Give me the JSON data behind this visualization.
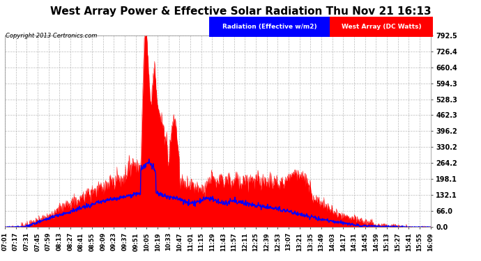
{
  "title": "West Array Power & Effective Solar Radiation Thu Nov 21 16:13",
  "copyright": "Copyright 2013 Certronics.com",
  "legend_blue": "Radiation (Effective w/m2)",
  "legend_red": "West Array (DC Watts)",
  "y_ticks": [
    0.0,
    66.0,
    132.1,
    198.1,
    264.2,
    330.2,
    396.2,
    462.3,
    528.3,
    594.3,
    660.4,
    726.4,
    792.5
  ],
  "y_max": 792.5,
  "y_min": 0.0,
  "plot_bg_color": "#ffffff",
  "grid_color": "#aaaaaa",
  "title_fontsize": 11,
  "copyright_fontsize": 6,
  "legend_fontsize": 6.5,
  "tick_fontsize": 7,
  "x_tick_fontsize": 6,
  "x_labels": [
    "07:01",
    "07:17",
    "07:31",
    "07:45",
    "07:59",
    "08:13",
    "08:27",
    "08:41",
    "08:55",
    "09:09",
    "09:23",
    "09:37",
    "09:51",
    "10:05",
    "10:19",
    "10:33",
    "10:47",
    "11:01",
    "11:15",
    "11:29",
    "11:43",
    "11:57",
    "12:11",
    "12:25",
    "12:39",
    "12:53",
    "13:07",
    "13:21",
    "13:35",
    "13:49",
    "14:03",
    "14:17",
    "14:31",
    "14:45",
    "14:59",
    "15:13",
    "15:27",
    "15:41",
    "15:55",
    "16:09"
  ]
}
